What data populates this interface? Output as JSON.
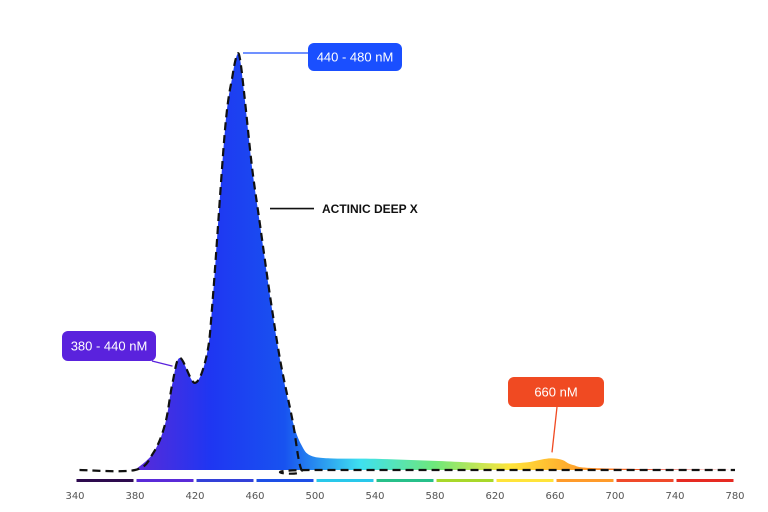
{
  "chart_data": {
    "type": "area",
    "xlim": [
      340,
      780
    ],
    "ylim": [
      0,
      1
    ],
    "x_ticks": [
      "340",
      "380",
      "420",
      "460",
      "500",
      "540",
      "580",
      "620",
      "660",
      "700",
      "740",
      "780"
    ],
    "series": [
      {
        "name": "ACTINIC DEEP X",
        "style": "dashed-outline",
        "x": [
          343,
          380,
          392,
          400,
          405,
          410,
          420,
          428,
          432,
          440,
          445,
          448,
          450,
          453,
          458,
          463,
          470,
          477,
          485,
          491,
          500,
          780
        ],
        "y": [
          0.0,
          0.0,
          0.04,
          0.11,
          0.21,
          0.27,
          0.21,
          0.28,
          0.42,
          0.82,
          0.95,
          1.0,
          0.99,
          0.9,
          0.73,
          0.6,
          0.42,
          0.26,
          0.12,
          0.0,
          0.0,
          0.0
        ]
      },
      {
        "name": "",
        "style": "spectrum-fill",
        "x": [
          380,
          392,
          400,
          405,
          410,
          420,
          428,
          432,
          440,
          445,
          448,
          450,
          453,
          458,
          463,
          470,
          477,
          485,
          491,
          497,
          510,
          540,
          580,
          620,
          640,
          652,
          658,
          665,
          672,
          690,
          780
        ],
        "y": [
          0.0,
          0.04,
          0.11,
          0.21,
          0.27,
          0.21,
          0.28,
          0.42,
          0.82,
          0.95,
          1.0,
          0.99,
          0.9,
          0.73,
          0.6,
          0.42,
          0.26,
          0.12,
          0.06,
          0.035,
          0.028,
          0.027,
          0.022,
          0.016,
          0.018,
          0.026,
          0.028,
          0.024,
          0.012,
          0.004,
          0.0
        ]
      }
    ],
    "annotations": [
      {
        "text": "440 - 480 nM",
        "x": 448,
        "y": 1.0,
        "color": "#1a4fff"
      },
      {
        "text": "380 - 440 nM",
        "x": 409,
        "y": 0.26,
        "color": "#5a22dd"
      },
      {
        "text": "660 nM",
        "x": 658,
        "y": 0.028,
        "color": "#f04a22"
      },
      {
        "text": "ACTINIC DEEP X",
        "x": 462,
        "y": 0.63,
        "color": "#111111"
      }
    ],
    "axis_colors": [
      "#2d0a4e",
      "#5a2ad8",
      "#3340d8",
      "#1d4fe6",
      "#29c8ea",
      "#27c08a",
      "#a8d82a",
      "#ffe43a",
      "#ff9b2a",
      "#f04a2a",
      "#e62a22"
    ],
    "spectrum_colors": [
      "#5a2ad8",
      "#1f36f2",
      "#1853f0",
      "#3ee0f0",
      "#6ee87a",
      "#ffe43a",
      "#ff9b2a",
      "#f0402a",
      "#e62a22"
    ]
  }
}
